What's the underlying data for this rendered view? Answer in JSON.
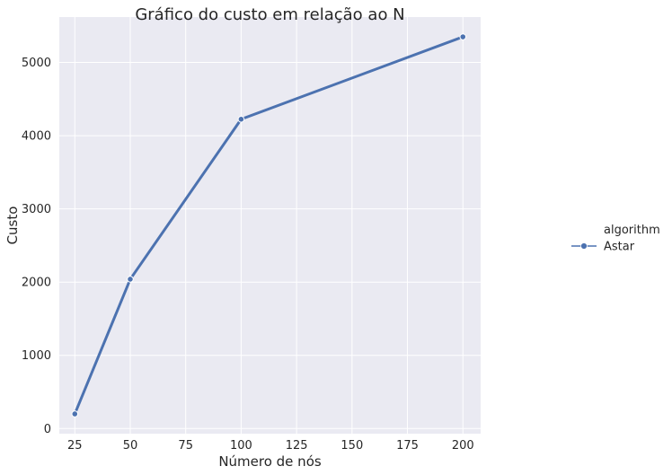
{
  "chart_data": {
    "type": "line",
    "title": "Gráfico do custo em relação ao N",
    "xlabel": "Número de nós",
    "ylabel": "Custo",
    "xlim": [
      18,
      208
    ],
    "ylim": [
      -70,
      5620
    ],
    "xticks": [
      25,
      50,
      75,
      100,
      125,
      150,
      175,
      200
    ],
    "yticks": [
      0,
      1000,
      2000,
      3000,
      4000,
      5000
    ],
    "x": [
      25,
      50,
      100,
      200
    ],
    "series": [
      {
        "name": "Astar",
        "values": [
          200,
          2040,
          4225,
          5350
        ],
        "color": "#4c72b0",
        "marker": "circle"
      }
    ],
    "grid": true,
    "legend": {
      "title": "algorithm",
      "placement": "right"
    },
    "background_color": "#eaeaf2"
  }
}
